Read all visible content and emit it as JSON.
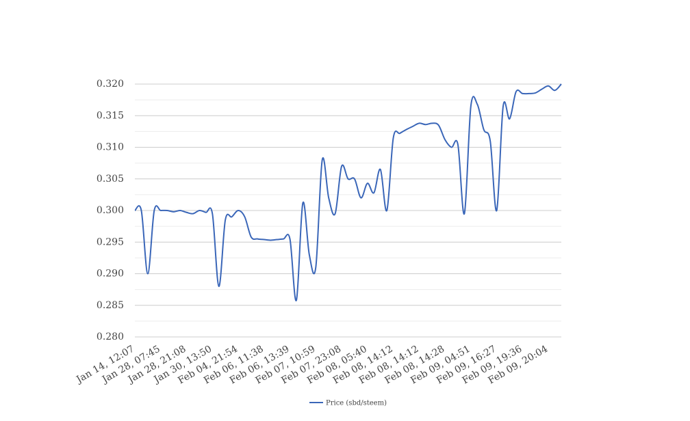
{
  "chart_data": {
    "type": "line",
    "categories": [
      "Jan 14, 12:07",
      null,
      null,
      null,
      "Jan 28, 07:45",
      null,
      null,
      null,
      "Jan 28, 21:08",
      null,
      null,
      null,
      "Jan 30, 13:50",
      null,
      null,
      null,
      "Feb 04, 21:54",
      null,
      null,
      null,
      "Feb 06, 11:38",
      null,
      null,
      null,
      "Feb 06, 13:39",
      null,
      null,
      null,
      "Feb 07, 10:59",
      null,
      null,
      null,
      "Feb 07, 23:08",
      null,
      null,
      null,
      "Feb 08, 05:40",
      null,
      null,
      null,
      "Feb 08, 14:12",
      null,
      null,
      null,
      "Feb 08, 14:12",
      null,
      null,
      null,
      "Feb 08, 14:28",
      null,
      null,
      null,
      "Feb 09, 04:51",
      null,
      null,
      null,
      "Feb 09, 16:27",
      null,
      null,
      null,
      "Feb 09, 19:36",
      null,
      null,
      null,
      "Feb 09, 20:04",
      null,
      null
    ],
    "series": [
      {
        "name": "Price (sbd/steem)",
        "color": "#3a66b8",
        "values": [
          0.3,
          0.3,
          0.29,
          0.3,
          0.3,
          0.3,
          0.2998,
          0.3,
          0.2997,
          0.2995,
          0.3,
          0.2997,
          0.2995,
          0.288,
          0.2985,
          0.299,
          0.3,
          0.299,
          0.2958,
          0.2955,
          0.2954,
          0.2953,
          0.2954,
          0.2955,
          0.2955,
          0.2858,
          0.3012,
          0.293,
          0.291,
          0.308,
          0.302,
          0.2995,
          0.307,
          0.305,
          0.305,
          0.302,
          0.3043,
          0.3028,
          0.3065,
          0.3,
          0.3115,
          0.3122,
          0.3128,
          0.3133,
          0.3138,
          0.3136,
          0.3138,
          0.3135,
          0.3112,
          0.31,
          0.3104,
          0.2995,
          0.3165,
          0.3168,
          0.3128,
          0.311,
          0.3,
          0.3165,
          0.3145,
          0.3188,
          0.3185,
          0.3185,
          0.3186,
          0.3192,
          0.3197,
          0.319,
          0.32
        ]
      }
    ],
    "ylim": [
      0.28,
      0.32
    ],
    "yticks": [
      {
        "value": 0.28,
        "label": "0.280"
      },
      {
        "value": 0.285,
        "label": "0.285"
      },
      {
        "value": 0.29,
        "label": "0.290"
      },
      {
        "value": 0.295,
        "label": "0.295"
      },
      {
        "value": 0.3,
        "label": "0.300"
      },
      {
        "value": 0.305,
        "label": "0.305"
      },
      {
        "value": 0.31,
        "label": "0.310"
      },
      {
        "value": 0.315,
        "label": "0.315"
      },
      {
        "value": 0.32,
        "label": "0.320"
      }
    ],
    "yminorticks": [
      0.2825,
      0.2875,
      0.2925,
      0.2975,
      0.3025,
      0.3075,
      0.3125,
      0.3175
    ],
    "grid": true,
    "legend": "bottom"
  }
}
